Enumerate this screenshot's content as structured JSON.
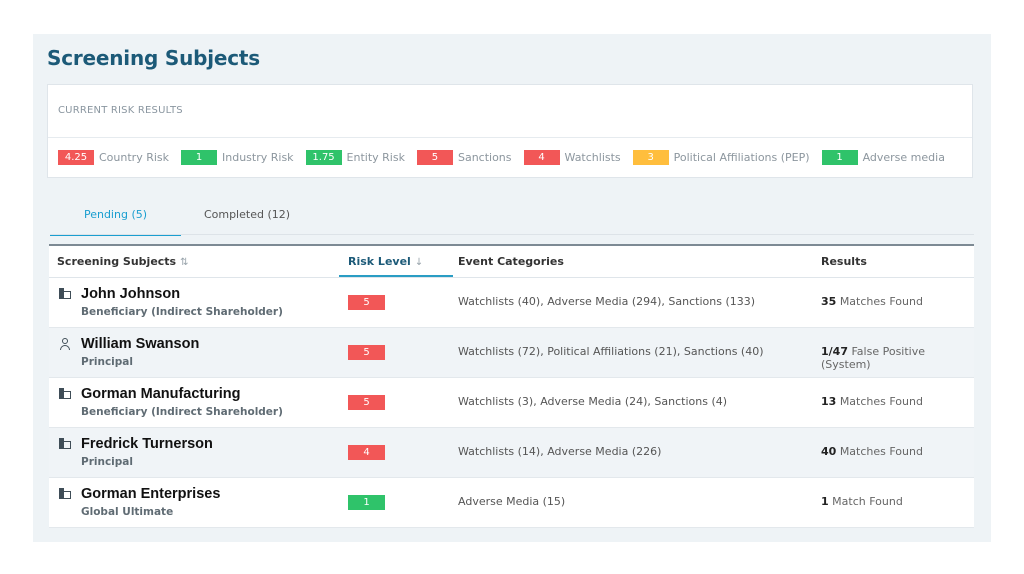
{
  "page": {
    "title": "Screening Subjects"
  },
  "risk_results": {
    "title": "CURRENT RISK RESULTS",
    "items": [
      {
        "value": "4.25",
        "label": "Country Risk",
        "color": "red"
      },
      {
        "value": "1",
        "label": "Industry Risk",
        "color": "green"
      },
      {
        "value": "1.75",
        "label": "Entity Risk",
        "color": "green"
      },
      {
        "value": "5",
        "label": "Sanctions",
        "color": "red"
      },
      {
        "value": "4",
        "label": "Watchlists",
        "color": "red"
      },
      {
        "value": "3",
        "label": "Political Affiliations (PEP)",
        "color": "orange"
      },
      {
        "value": "1",
        "label": "Adverse media",
        "color": "green"
      }
    ]
  },
  "tabs": [
    {
      "label": "Pending (5)",
      "active": true
    },
    {
      "label": "Completed (12)",
      "active": false
    }
  ],
  "table": {
    "headers": {
      "subjects": "Screening Subjects",
      "risk": "Risk Level",
      "events": "Event Categories",
      "results": "Results"
    },
    "rows": [
      {
        "icon": "building-icon",
        "name": "John Johnson",
        "role": "Beneficiary (Indirect Shareholder)",
        "risk": "5",
        "risk_color": "red",
        "events": "Watchlists (40), Adverse Media (294), Sanctions (133)",
        "result_num": "35",
        "result_text": "Matches Found"
      },
      {
        "icon": "person-icon",
        "name": "William Swanson",
        "role": "Principal",
        "risk": "5",
        "risk_color": "red",
        "events": "Watchlists (72), Political Affiliations (21), Sanctions (40)",
        "result_num": "1/47",
        "result_text": "False Positive (System)"
      },
      {
        "icon": "building-icon",
        "name": "Gorman Manufacturing",
        "role": "Beneficiary (Indirect Shareholder)",
        "risk": "5",
        "risk_color": "red",
        "events": "Watchlists (3), Adverse Media (24), Sanctions (4)",
        "result_num": "13",
        "result_text": "Matches Found"
      },
      {
        "icon": "building-icon",
        "name": "Fredrick Turnerson",
        "role": "Principal",
        "risk": "4",
        "risk_color": "red",
        "events": "Watchlists (14), Adverse Media (226)",
        "result_num": "40",
        "result_text": "Matches Found"
      },
      {
        "icon": "building-icon",
        "name": "Gorman Enterprises",
        "role": "Global Ultimate",
        "risk": "1",
        "risk_color": "green",
        "events": "Adverse Media (15)",
        "result_num": "1",
        "result_text": "Match Found"
      }
    ]
  }
}
